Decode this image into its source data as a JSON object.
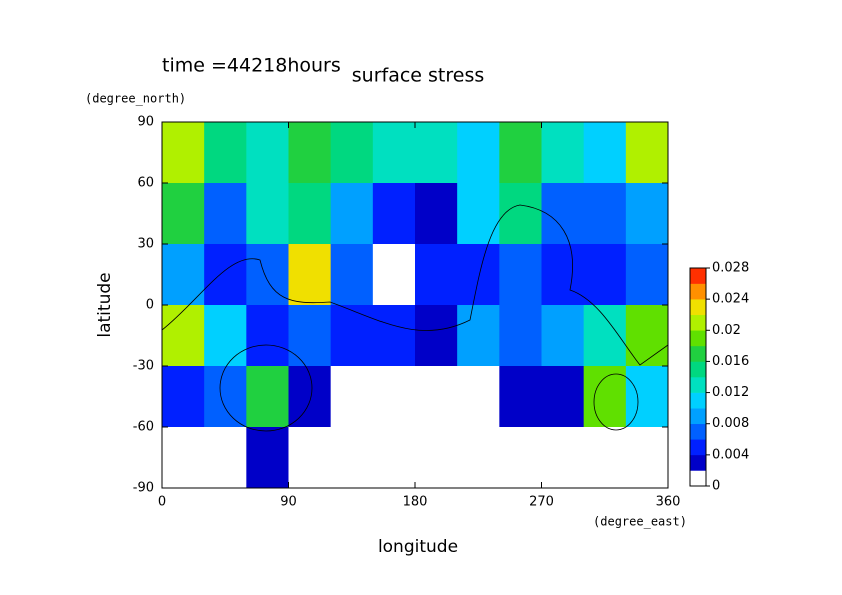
{
  "chart_data": {
    "type": "contour",
    "title": "surface stress",
    "subtitle": "time =44218hours",
    "x_label": "longitude",
    "x_unit": "(degree_east)",
    "y_label": "latitude",
    "y_unit": "(degree_north)",
    "xlim": [
      0,
      360
    ],
    "xticks": [
      0,
      90,
      180,
      270,
      360
    ],
    "ylim": [
      -90,
      90
    ],
    "yticks": [
      -90,
      -60,
      -30,
      0,
      30,
      60,
      90
    ],
    "x": [
      0,
      30,
      60,
      90,
      120,
      150,
      180,
      210,
      240,
      270,
      300,
      330,
      360
    ],
    "y": [
      90,
      60,
      30,
      0,
      -30,
      -60,
      -90
    ],
    "values": [
      [
        0.02,
        0.014,
        0.012,
        0.016,
        0.014,
        0.012,
        0.012,
        0.01,
        0.016,
        0.012,
        0.01,
        0.02
      ],
      [
        0.016,
        0.006,
        0.012,
        0.014,
        0.008,
        0.004,
        0.002,
        0.01,
        0.014,
        0.006,
        0.006,
        0.008
      ],
      [
        0.008,
        0.004,
        0.006,
        0.022,
        0.006,
        0,
        0.004,
        0.004,
        0.006,
        0.004,
        0.004,
        0.006
      ],
      [
        0.02,
        0.01,
        0.004,
        0.006,
        0.004,
        0.004,
        0.002,
        0.008,
        0.006,
        0.008,
        0.012,
        0.018
      ],
      [
        0.004,
        0.006,
        0.016,
        0.002,
        0,
        0,
        0,
        0,
        0.002,
        0.002,
        0.018,
        0.01
      ],
      [
        0,
        0,
        0.002,
        0,
        0,
        0,
        0,
        0,
        0,
        0,
        0,
        0
      ]
    ],
    "colorbar": {
      "lim": [
        0,
        0.028
      ],
      "ticks": [
        0,
        0.004,
        0.008,
        0.012,
        0.016,
        0.02,
        0.024,
        0.028
      ],
      "step": 0.002,
      "colors": [
        "#ffffff",
        "#0000c8",
        "#0020ff",
        "#0060ff",
        "#00a0ff",
        "#00d0ff",
        "#00e0c0",
        "#00d880",
        "#20d040",
        "#60e000",
        "#b0f000",
        "#f0e000",
        "#ff9000",
        "#ff3000"
      ]
    }
  }
}
